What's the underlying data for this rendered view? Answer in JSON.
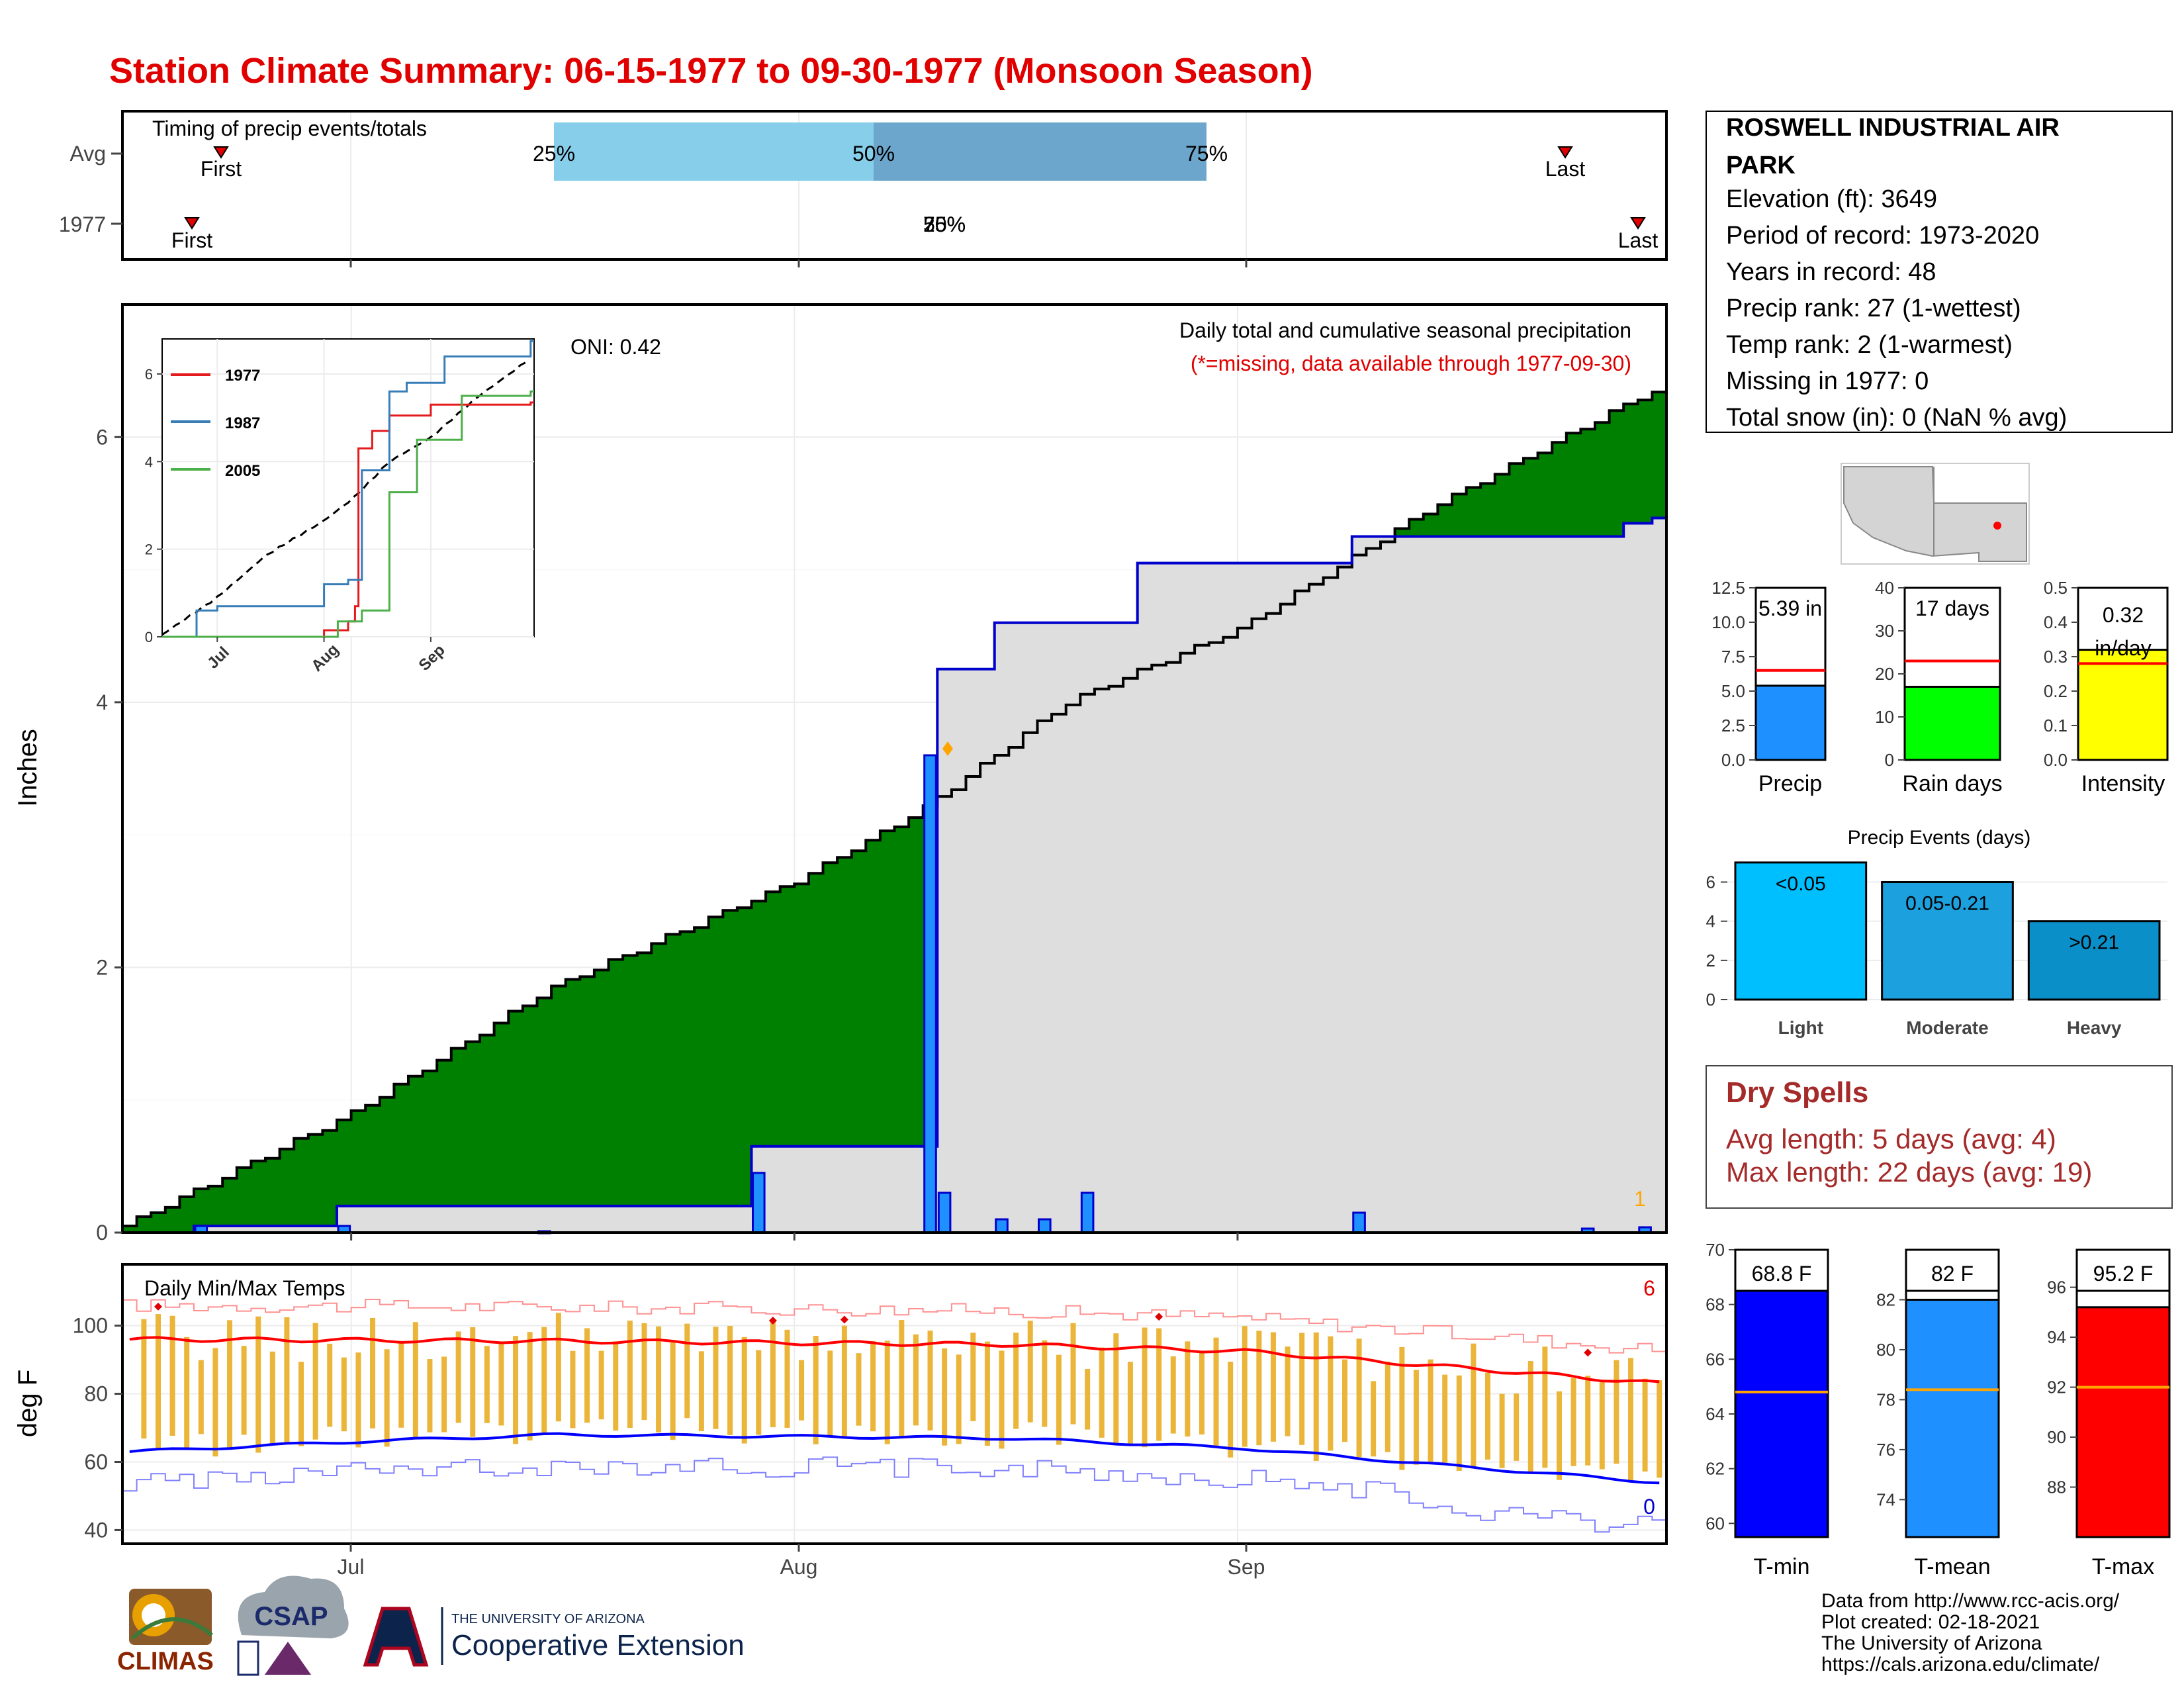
{
  "title": "Station Climate Summary: 06-15-1977 to 09-30-1977 (Monsoon Season)",
  "timing": {
    "label": "Timing of precip events/totals",
    "row_labels": [
      "Avg",
      "1977"
    ],
    "quartile_labels": [
      "25%",
      "50%",
      "75%"
    ],
    "marker_labels": {
      "first": "First",
      "last": "Last"
    },
    "overlap_label_a": "50%",
    "overlap_label_b": "25%",
    "overlap_label_c": "75%"
  },
  "station": {
    "name_line1": "ROSWELL INDUSTRIAL AIR",
    "name_line2": "PARK",
    "elevation": "Elevation (ft): 3649",
    "period": "Period of record: 1973-2020",
    "years": "Years in record: 48",
    "precip_rank": "Precip rank: 27 (1-wettest)",
    "temp_rank": "Temp rank: 2 (1-warmest)",
    "missing": "Missing in 1977: 0",
    "snow": "Total snow (in): 0 (NaN % avg)"
  },
  "main_panel": {
    "title": "Daily total and cumulative seasonal precipitation",
    "subtitle": "(*=missing, data available through 1977-09-30)",
    "oni": "ONI: 0.42",
    "ylabel": "Inches",
    "yticks": [
      "0",
      "2",
      "4",
      "6"
    ],
    "xticks": [
      "Jul",
      "Aug",
      "Sep"
    ],
    "missing_count": "1",
    "colors": {
      "avg_fill": "#8B5A00",
      "above_avg": "#008000",
      "obs_fill": "#DEDEDE",
      "bars": "#1E90FF"
    }
  },
  "inset": {
    "legend": [
      "1977",
      "1987",
      "2005"
    ],
    "colors": [
      "#E41A1C",
      "#377EB8",
      "#4DAF4A"
    ],
    "yticks": [
      "0",
      "2",
      "4",
      "6"
    ],
    "xticks": [
      "Jul",
      "Aug",
      "Sep"
    ]
  },
  "temp_panel": {
    "title": "Daily Min/Max Temps",
    "ylabel": "deg F",
    "yticks": [
      "40",
      "60",
      "80",
      "100"
    ],
    "xticks": [
      "Jul",
      "Aug",
      "Sep"
    ],
    "record_high_count": "6",
    "record_low_count": "0"
  },
  "summary_bars": {
    "precip": {
      "label": "Precip",
      "value_label": "5.39 in",
      "yticks": [
        "0.0",
        "2.5",
        "5.0",
        "7.5",
        "10.0",
        "12.5"
      ],
      "color": "#1E90FF"
    },
    "rain_days": {
      "label": "Rain days",
      "value_label": "17 days",
      "yticks": [
        "0",
        "10",
        "20",
        "30",
        "40"
      ],
      "color": "#00FF00"
    },
    "intensity": {
      "label": "Intensity",
      "value_label_1": "0.32",
      "value_label_2": "in/day",
      "yticks": [
        "0.0",
        "0.1",
        "0.2",
        "0.3",
        "0.4",
        "0.5"
      ],
      "color": "#FFFF00"
    }
  },
  "events": {
    "title": "Precip Events (days)",
    "categories": [
      "Light",
      "Moderate",
      "Heavy"
    ],
    "bar_labels": [
      "<0.05",
      "0.05-0.21",
      ">0.21"
    ],
    "yticks": [
      "0",
      "2",
      "4",
      "6"
    ],
    "colors": [
      "#00BFFF",
      "#1CA0DE",
      "#0A8FC8"
    ]
  },
  "dry_spells": {
    "title": "Dry Spells",
    "avg": "Avg length: 5 days (avg: 4)",
    "max": "Max length: 22 days (avg: 19)"
  },
  "temp_bars": {
    "tmin": {
      "label": "T-min",
      "value_label": "68.8 F",
      "yticks": [
        "60",
        "62",
        "64",
        "66",
        "68",
        "70"
      ],
      "color": "#0000FF"
    },
    "tmean": {
      "label": "T-mean",
      "value_label": "82 F",
      "yticks": [
        "74",
        "76",
        "78",
        "80",
        "82"
      ],
      "color": "#1E90FF"
    },
    "tmax": {
      "label": "T-max",
      "value_label": "95.2 F",
      "yticks": [
        "88",
        "90",
        "92",
        "94",
        "96"
      ],
      "color": "#FF0000"
    }
  },
  "footer": {
    "line1": "Data from http://www.rcc-acis.org/",
    "line2": "Plot created: 02-18-2021",
    "line3": "The University of Arizona",
    "line4": "https://cals.arizona.edu/climate/",
    "logo_climas": "CLIMAS",
    "logo_csap": "CSAP",
    "logo_ua_small": "THE UNIVERSITY OF ARIZONA",
    "logo_ua_big": "Cooperative Extension"
  },
  "chart_data": [
    {
      "type": "area",
      "title": "Daily total and cumulative seasonal precipitation",
      "ylabel": "Inches",
      "ylim": [
        0,
        7
      ],
      "x_range": [
        "1977-06-15",
        "1977-09-30"
      ],
      "series": [
        {
          "name": "avg_cumulative_anchor",
          "x": [
            "1977-06-15",
            "1977-07-01",
            "1977-07-15",
            "1977-08-01",
            "1977-08-10",
            "1977-08-20",
            "1977-09-01",
            "1977-09-15",
            "1977-09-30"
          ],
          "values": [
            0.05,
            0.9,
            1.85,
            2.65,
            3.2,
            4.0,
            4.55,
            5.5,
            6.35
          ]
        },
        {
          "name": "obs_cumulative_anchor",
          "x": [
            "1977-06-15",
            "1977-06-20",
            "1977-06-30",
            "1977-07-09",
            "1977-07-29",
            "1977-08-10",
            "1977-08-11",
            "1977-08-15",
            "1977-08-25",
            "1977-09-09",
            "1977-09-28",
            "1977-09-30"
          ],
          "values": [
            0.0,
            0.05,
            0.2,
            0.2,
            0.65,
            0.65,
            4.25,
            4.6,
            5.05,
            5.25,
            5.35,
            5.39
          ]
        },
        {
          "name": "daily_precip",
          "x": [
            "1977-06-20",
            "1977-06-30",
            "1977-07-14",
            "1977-07-29",
            "1977-08-10",
            "1977-08-11",
            "1977-08-15",
            "1977-08-18",
            "1977-08-21",
            "1977-09-09",
            "1977-09-25",
            "1977-09-29"
          ],
          "values": [
            0.05,
            0.05,
            0.01,
            0.45,
            3.6,
            0.3,
            0.1,
            0.1,
            0.3,
            0.15,
            0.03,
            0.04
          ]
        }
      ]
    },
    {
      "type": "line",
      "ylim": [
        0,
        6.8
      ],
      "series": [
        {
          "name": "1977",
          "x": [
            "Jun-15",
            "Jul-01",
            "Aug-01",
            "Aug-08",
            "Aug-10",
            "Aug-11",
            "Aug-15",
            "Aug-20",
            "Sep-01",
            "Sep-30"
          ],
          "values": [
            0,
            0,
            0.15,
            0.35,
            0.7,
            4.3,
            4.7,
            5.05,
            5.3,
            5.35
          ]
        },
        {
          "name": "1987",
          "x": [
            "Jun-15",
            "Jun-25",
            "Jul-01",
            "Aug-01",
            "Aug-08",
            "Aug-12",
            "Aug-20",
            "Aug-25",
            "Sep-05",
            "Sep-30"
          ],
          "values": [
            0,
            0.6,
            0.7,
            1.2,
            1.3,
            3.8,
            5.6,
            5.8,
            6.4,
            6.75
          ]
        },
        {
          "name": "2005",
          "x": [
            "Jun-15",
            "Jul-25",
            "Aug-05",
            "Aug-12",
            "Aug-20",
            "Aug-28",
            "Sep-10",
            "Sep-30"
          ],
          "values": [
            0,
            0,
            0.35,
            0.6,
            3.3,
            4.5,
            5.5,
            5.6
          ]
        }
      ]
    },
    {
      "type": "line",
      "title": "Daily Min/Max Temps",
      "ylabel": "deg F",
      "ylim": [
        36,
        118
      ],
      "series": [
        {
          "name": "avg_max",
          "x": [
            "Jun-15",
            "Jul-15",
            "Aug-15",
            "Sep-01",
            "Sep-15",
            "Sep-30"
          ],
          "values": [
            96,
            95.5,
            94.5,
            92.5,
            88,
            83
          ]
        },
        {
          "name": "avg_min",
          "x": [
            "Jun-15",
            "Jul-01",
            "Jul-15",
            "Aug-15",
            "Sep-01",
            "Sep-15",
            "Sep-30"
          ],
          "values": [
            63,
            66,
            68,
            67,
            64,
            59,
            54
          ]
        }
      ]
    },
    {
      "type": "bar",
      "categories": [
        "Precip"
      ],
      "values": [
        5.39
      ],
      "ylim": [
        0,
        12.5
      ],
      "reference": 6.5
    },
    {
      "type": "bar",
      "categories": [
        "Rain days"
      ],
      "values": [
        17
      ],
      "ylim": [
        0,
        40
      ],
      "reference": 23
    },
    {
      "type": "bar",
      "categories": [
        "Intensity"
      ],
      "values": [
        0.32
      ],
      "ylim": [
        0,
        0.5
      ],
      "reference": 0.28
    },
    {
      "type": "bar",
      "title": "Precip Events (days)",
      "categories": [
        "Light",
        "Moderate",
        "Heavy"
      ],
      "values": [
        7,
        6,
        4
      ],
      "ylim": [
        0,
        7.2
      ]
    },
    {
      "type": "bar",
      "categories": [
        "T-min"
      ],
      "values": [
        68.8
      ],
      "ylim": [
        59.5,
        70
      ],
      "reference": 64.8
    },
    {
      "type": "bar",
      "categories": [
        "T-mean"
      ],
      "values": [
        82
      ],
      "ylim": [
        72.5,
        84
      ],
      "reference": 78.4
    },
    {
      "type": "bar",
      "categories": [
        "T-max"
      ],
      "values": [
        95.2
      ],
      "ylim": [
        86,
        97.5
      ],
      "reference": 92
    }
  ]
}
